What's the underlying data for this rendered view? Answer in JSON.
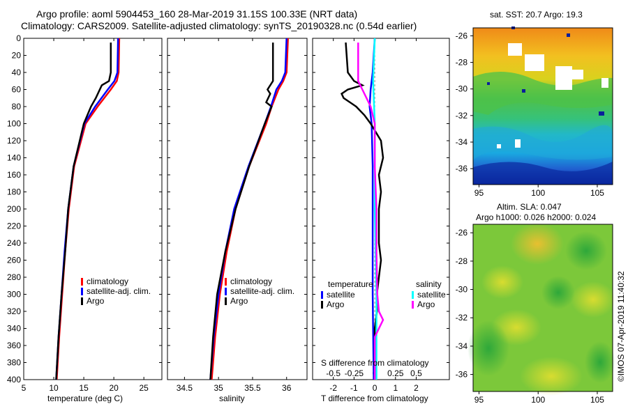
{
  "header": {
    "line1": "Argo profile: aoml 5904453_160 28-Mar-2019 31.15S 100.33E (NRT data)",
    "line2": "Climatology: CARS2009. Satellite-adjusted climatology: synTS_20190328.nc (0.54d earlier)"
  },
  "depth_ticks": [
    "0",
    "20",
    "40",
    "60",
    "80",
    "100",
    "120",
    "140",
    "160",
    "180",
    "200",
    "220",
    "240",
    "260",
    "280",
    "300",
    "320",
    "340",
    "360",
    "380",
    "400"
  ],
  "colors": {
    "climatology": "#ff0000",
    "satellite": "#0000ff",
    "argo": "#000000",
    "sat_salinity": "#00ffff",
    "argo_salinity": "#ff00ff"
  },
  "chart_data": [
    {
      "type": "line",
      "title": "",
      "xlabel": "temperature (deg C)",
      "ylabel": "",
      "xlim": [
        5,
        28
      ],
      "ylim": [
        400,
        0
      ],
      "xticks": [
        "5",
        "10",
        "15",
        "20",
        "25"
      ],
      "legend": {
        "position": "bottom-right",
        "items": [
          "climatology",
          "satellite-adj. clim.",
          "Argo"
        ]
      },
      "series": [
        {
          "name": "climatology",
          "color": "#ff0000",
          "depth": [
            0,
            40,
            50,
            60,
            80,
            100,
            150,
            200,
            250,
            300,
            350,
            400
          ],
          "values": [
            20.9,
            20.8,
            20.5,
            19.5,
            17.3,
            15.3,
            13.4,
            12.5,
            11.9,
            11.4,
            10.9,
            10.5
          ]
        },
        {
          "name": "satellite-adj. clim.",
          "color": "#0000ff",
          "depth": [
            0,
            40,
            50,
            60,
            80,
            100,
            150,
            200,
            250,
            300,
            350,
            400
          ],
          "values": [
            20.7,
            20.6,
            20.1,
            19.0,
            16.9,
            15.1,
            13.3,
            12.4,
            11.8,
            11.3,
            10.8,
            10.4
          ]
        },
        {
          "name": "Argo",
          "color": "#000000",
          "depth": [
            5,
            40,
            50,
            55,
            70,
            80,
            100,
            150,
            200,
            250,
            300,
            350,
            400
          ],
          "values": [
            19.5,
            19.5,
            19.2,
            18.0,
            17.0,
            16.2,
            15.0,
            13.3,
            12.4,
            11.9,
            11.3,
            10.8,
            10.4
          ]
        }
      ]
    },
    {
      "type": "line",
      "title": "",
      "xlabel": "salinity",
      "ylabel": "",
      "xlim": [
        34.25,
        36.3
      ],
      "ylim": [
        400,
        0
      ],
      "xticks": [
        "34.5",
        "35",
        "35.5",
        "36"
      ],
      "legend": {
        "position": "bottom-right",
        "items": [
          "climatology",
          "satellite-adj. clim.",
          "Argo"
        ]
      },
      "series": [
        {
          "name": "climatology",
          "color": "#ff0000",
          "depth": [
            0,
            40,
            50,
            60,
            80,
            100,
            150,
            200,
            250,
            300,
            350,
            400
          ],
          "values": [
            36.02,
            36.0,
            35.95,
            35.88,
            35.78,
            35.7,
            35.45,
            35.25,
            35.12,
            35.02,
            34.95,
            34.9
          ]
        },
        {
          "name": "satellite-adj. clim.",
          "color": "#0000ff",
          "depth": [
            0,
            40,
            50,
            60,
            80,
            100,
            150,
            200,
            250,
            300,
            350,
            400
          ],
          "values": [
            36.0,
            35.98,
            35.93,
            35.85,
            35.77,
            35.68,
            35.44,
            35.23,
            35.1,
            35.0,
            34.93,
            34.88
          ]
        },
        {
          "name": "Argo",
          "color": "#000000",
          "depth": [
            5,
            50,
            60,
            65,
            75,
            80,
            100,
            150,
            200,
            250,
            300,
            350,
            400
          ],
          "values": [
            35.8,
            35.8,
            35.72,
            35.76,
            35.7,
            35.78,
            35.68,
            35.45,
            35.25,
            35.1,
            34.98,
            34.92,
            34.88
          ]
        }
      ]
    },
    {
      "type": "line",
      "title": "",
      "xlabel": "T difference from climatology",
      "xlabel_top": "S difference from climatology",
      "ylabel": "",
      "xlim": [
        -3,
        3.6
      ],
      "ylim": [
        400,
        0
      ],
      "xticks": [
        "-2",
        "-1",
        "0",
        "1",
        "2"
      ],
      "xticks_top": [
        "-0.5",
        "-0.25",
        "0",
        "0.25",
        "0.5"
      ],
      "legend": {
        "position": "bottom",
        "temperature_heading": "temperature",
        "salinity_heading": "salinity",
        "items": [
          {
            "group": "temperature",
            "name": "satellite"
          },
          {
            "group": "temperature",
            "name": "Argo"
          },
          {
            "group": "salinity",
            "name": "satellite"
          },
          {
            "group": "salinity",
            "name": "Argo"
          }
        ]
      },
      "series": [
        {
          "name": "temperature satellite",
          "color": "#0000ff",
          "depth": [
            0,
            40,
            60,
            80,
            100,
            150,
            200,
            300,
            400
          ],
          "values": [
            0.0,
            -0.1,
            -0.2,
            -0.25,
            -0.15,
            -0.1,
            -0.1,
            -0.1,
            -0.05
          ]
        },
        {
          "name": "temperature Argo",
          "color": "#000000",
          "depth": [
            5,
            40,
            50,
            55,
            60,
            65,
            70,
            75,
            80,
            90,
            100,
            120,
            140,
            160,
            180,
            200,
            240,
            260,
            280,
            300,
            320,
            340,
            360,
            400
          ],
          "values": [
            -1.4,
            -1.3,
            -1.0,
            -0.6,
            -1.3,
            -1.6,
            -1.5,
            -1.2,
            -0.9,
            -0.5,
            -0.2,
            0.3,
            0.4,
            0.2,
            0.3,
            0.2,
            0.2,
            0.3,
            0.2,
            0.1,
            0.1,
            0.0,
            0.0,
            0.0
          ]
        },
        {
          "name": "salinity satellite",
          "color": "#00ffff",
          "depth": [
            0,
            50,
            100,
            200,
            300,
            400
          ],
          "values": [
            0.0,
            -0.02,
            0.0,
            0.0,
            0.02,
            0.02
          ]
        },
        {
          "name": "salinity Argo",
          "color": "#ff00ff",
          "depth": [
            5,
            50,
            60,
            80,
            100,
            150,
            200,
            250,
            300,
            320,
            330,
            350,
            400
          ],
          "values": [
            -0.2,
            -0.2,
            -0.15,
            -0.05,
            0.0,
            0.0,
            0.02,
            0.02,
            0.03,
            0.05,
            0.1,
            0.0,
            0.0
          ]
        }
      ]
    },
    {
      "type": "heatmap",
      "title": "sat. SST: 20.7 Argo: 19.3",
      "xticks": [
        "95",
        "100",
        "105"
      ],
      "yticks": [
        "-26",
        "-28",
        "-30",
        "-32",
        "-34",
        "-36"
      ],
      "xlim": [
        94.5,
        106.3
      ],
      "ylim": [
        -37.2,
        -25.4
      ]
    },
    {
      "type": "heatmap",
      "title": "Altim. SLA: 0.047",
      "subtitle": "Argo h1000: 0.026 h2000: 0.024",
      "xticks": [
        "95",
        "100",
        "105"
      ],
      "yticks": [
        "-26",
        "-28",
        "-30",
        "-32",
        "-34",
        "-36"
      ],
      "xlim": [
        94.5,
        106.3
      ],
      "ylim": [
        -37.2,
        -25.4
      ]
    }
  ],
  "credit": "©IMOS 07-Apr-2019 11:40:32"
}
